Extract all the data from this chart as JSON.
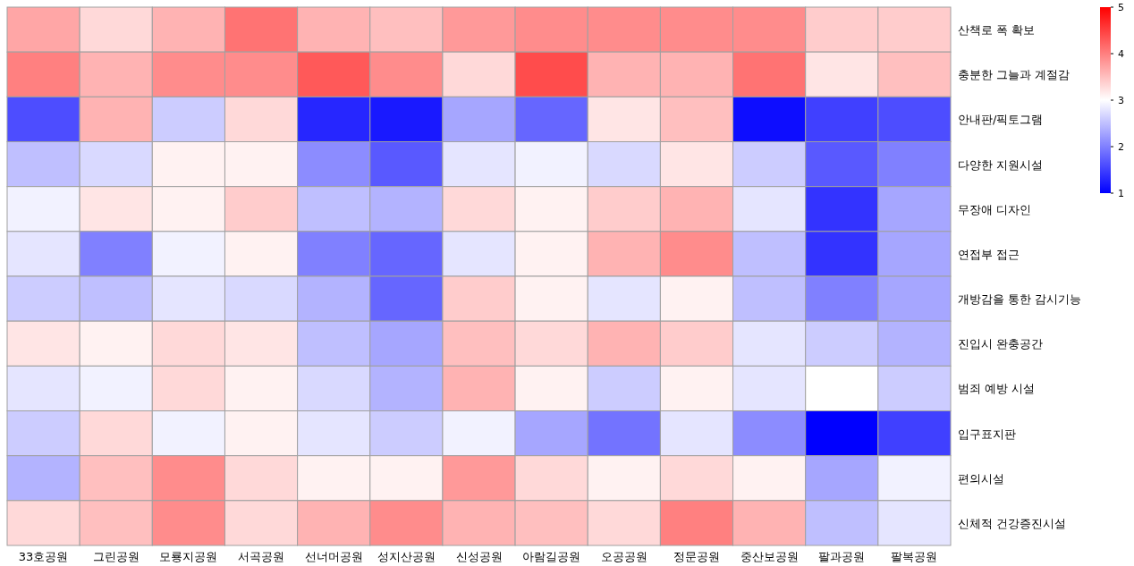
{
  "chart_data": {
    "type": "heatmap",
    "categories": [
      "33호공원",
      "그린공원",
      "모룡지공원",
      "서곡공원",
      "선너머공원",
      "성지산공원",
      "신성공원",
      "아람길공원",
      "오공공원",
      "정문공원",
      "중산보공원",
      "팔과공원",
      "팔복공원"
    ],
    "y_categories": [
      "산책로 폭 확보",
      "충분한 그늘과 계절감",
      "안내판/픽토그램",
      "다양한 지원시설",
      "무장애 디자인",
      "연접부 접근",
      "개방감을 통한 감시기능",
      "진입시 완충공간",
      "범죄 예방 시설",
      "입구표지판",
      "편의시설",
      "신체적 건강증진시설"
    ],
    "cells": [
      [
        3.7,
        3.3,
        3.6,
        4.1,
        3.6,
        3.5,
        3.8,
        3.9,
        3.9,
        3.9,
        3.9,
        3.4,
        3.4
      ],
      [
        4.0,
        3.6,
        3.9,
        3.9,
        4.3,
        3.9,
        3.3,
        4.4,
        3.6,
        3.6,
        4.1,
        3.2,
        3.5
      ],
      [
        1.6,
        3.6,
        2.6,
        3.3,
        1.3,
        1.2,
        2.3,
        1.8,
        3.2,
        3.5,
        1.1,
        1.5,
        1.6
      ],
      [
        2.5,
        2.7,
        3.1,
        3.1,
        2.1,
        1.7,
        2.8,
        2.9,
        2.7,
        3.2,
        2.6,
        1.7,
        2.0
      ],
      [
        2.9,
        3.2,
        3.1,
        3.4,
        2.5,
        2.4,
        3.3,
        3.1,
        3.4,
        3.6,
        2.8,
        1.4,
        2.3
      ],
      [
        2.8,
        2.0,
        2.9,
        3.1,
        2.0,
        1.8,
        2.8,
        3.1,
        3.6,
        3.9,
        2.5,
        1.4,
        2.3
      ],
      [
        2.6,
        2.5,
        2.8,
        2.7,
        2.4,
        1.8,
        3.4,
        3.1,
        2.8,
        3.1,
        2.5,
        2.0,
        2.3
      ],
      [
        3.2,
        3.1,
        3.3,
        3.2,
        2.5,
        2.3,
        3.5,
        3.3,
        3.6,
        3.4,
        2.8,
        2.6,
        2.4
      ],
      [
        2.8,
        2.9,
        3.3,
        3.1,
        2.7,
        2.4,
        3.6,
        3.1,
        2.6,
        3.1,
        2.8,
        3.0,
        2.6
      ],
      [
        2.6,
        3.3,
        2.9,
        3.1,
        2.8,
        2.6,
        2.9,
        2.3,
        1.9,
        2.8,
        2.1,
        1.0,
        1.5
      ],
      [
        2.4,
        3.5,
        3.9,
        3.3,
        3.1,
        3.1,
        3.8,
        3.3,
        3.1,
        3.3,
        3.1,
        2.3,
        2.9
      ],
      [
        3.3,
        3.5,
        3.9,
        3.3,
        3.6,
        3.9,
        3.6,
        3.5,
        3.3,
        4.0,
        3.6,
        2.5,
        2.8
      ]
    ],
    "colors": [
      "#0000ff",
      "#ffffff",
      "#ff0000"
    ],
    "clim": [
      1,
      5
    ],
    "cticks": [
      1,
      2,
      3,
      4,
      5
    ]
  }
}
